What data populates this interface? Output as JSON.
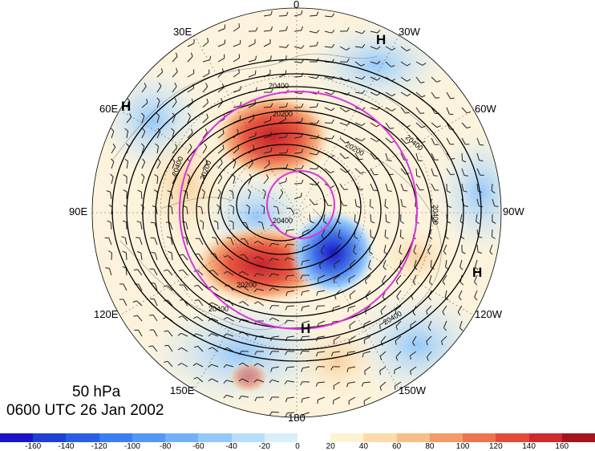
{
  "map": {
    "level": "50 hPa",
    "datetime": "0600 UTC 26 Jan 2002",
    "longitude_labels": [
      "0",
      "30W",
      "60W",
      "90W",
      "120W",
      "150W",
      "180",
      "150E",
      "120E",
      "90E",
      "60E",
      "30E"
    ],
    "pressure_centers": [
      "H",
      "H",
      "H",
      "H"
    ],
    "contour_labels": [
      "20400",
      "20200",
      "20400",
      "20200",
      "20400",
      "20200",
      "20400",
      "20400",
      "20200",
      "20400",
      "20400"
    ],
    "colorbar": {
      "ticks": [
        "-160",
        "-140",
        "-120",
        "-100",
        "-80",
        "-60",
        "-40",
        "-20",
        "0",
        "20",
        "40",
        "60",
        "80",
        "100",
        "120",
        "140",
        "160"
      ],
      "colors": [
        "#1a14c8",
        "#1f3fd9",
        "#2a5ee6",
        "#3c7df0",
        "#5597f4",
        "#73b1f7",
        "#95c8fa",
        "#b8def9",
        "#d9effa",
        "#ffffff",
        "#fdf3d3",
        "#fbdcab",
        "#f7bf86",
        "#f29b68",
        "#ec744f",
        "#e24a3a",
        "#cf2a2c",
        "#a3141d"
      ]
    },
    "colors": {
      "circle_lines": "#dd33dd",
      "contours": "#000000"
    }
  }
}
